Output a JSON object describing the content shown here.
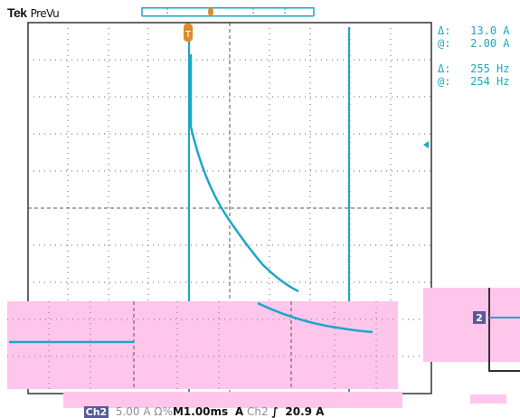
{
  "header": {
    "brand": "Tek",
    "mode": "PreVu"
  },
  "cursor_readouts": [
    {
      "symbol": "Δ:",
      "value": "13.0 A"
    },
    {
      "symbol": "@:",
      "value": "2.00 A"
    },
    {
      "symbol": "Δ:",
      "value": "255 Hz"
    },
    {
      "symbol": "@:",
      "value": "254 Hz"
    }
  ],
  "status_bar": {
    "channel": "Ch2",
    "scale": "5.00 A Ω%",
    "timebase": "M1.00ms",
    "trigger_mode": "A",
    "trigger_source": "Ch2",
    "trigger_slope": "∫",
    "trigger_level": "20.9 A"
  },
  "markers": {
    "trigger_position": "T",
    "channel_2": "2"
  },
  "colors": {
    "trace": "#1ba7c6",
    "grid": "#444444",
    "overlay": "#ffc6ec",
    "accent": "#e08a2a"
  }
}
